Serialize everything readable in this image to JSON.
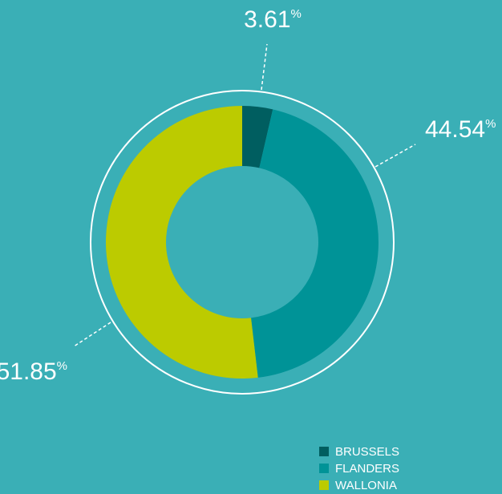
{
  "chart_data": {
    "type": "donut",
    "categories": [
      "BRUSSELS",
      "FLANDERS",
      "WALLONIA"
    ],
    "values": [
      3.61,
      44.54,
      51.85
    ],
    "unit": "%",
    "colors": [
      "#005e60",
      "#009397",
      "#bccb00"
    ],
    "background": "#3aafb6"
  }
}
